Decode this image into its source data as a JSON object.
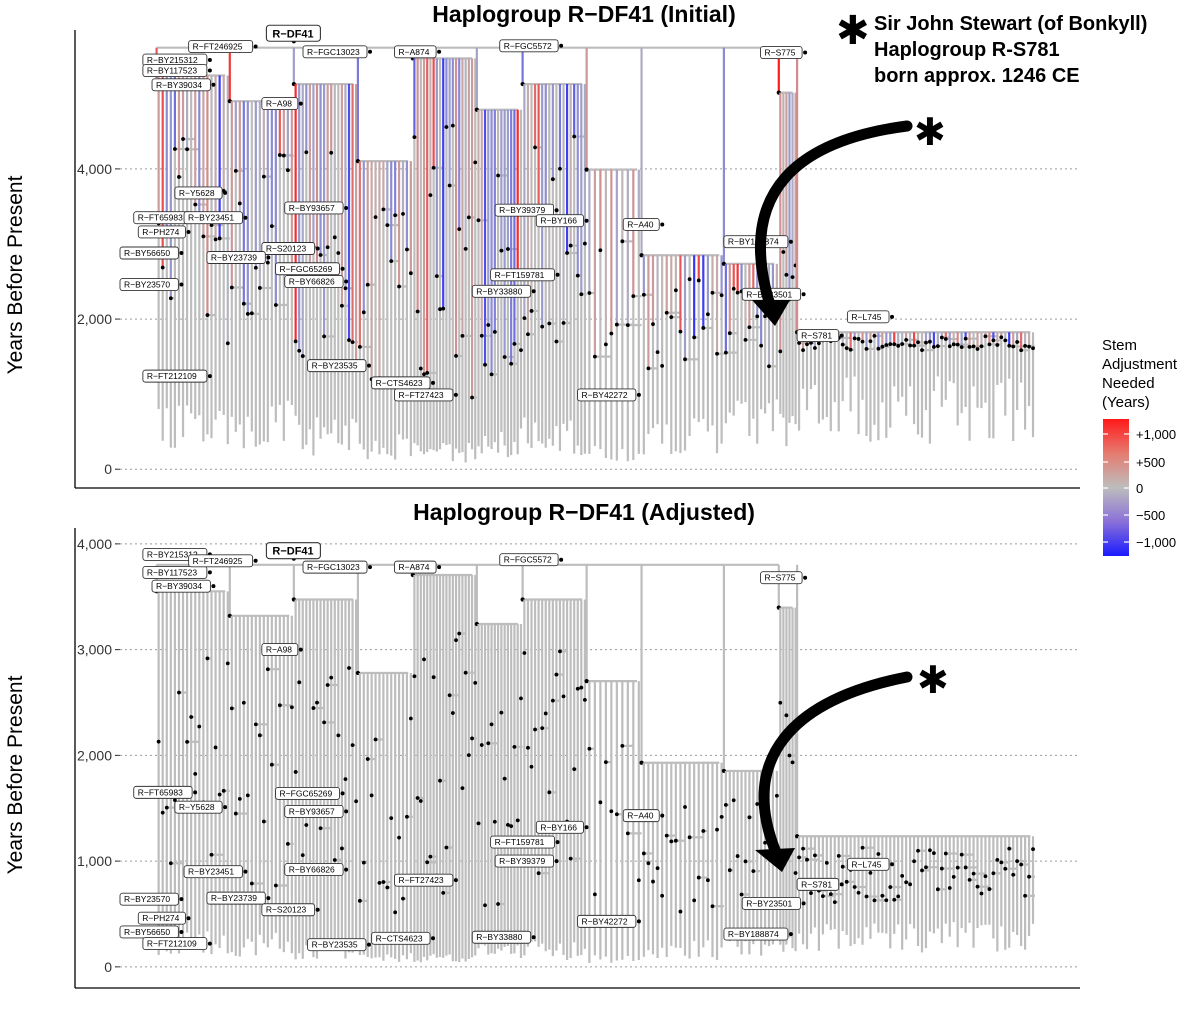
{
  "annotation": {
    "star": "✱",
    "lines": [
      "Sir John Stewart (of Bonkyll)",
      "Haplogroup R-S781",
      "born approx. 1246 CE"
    ]
  },
  "legend": {
    "title_lines": [
      "Stem",
      "Adjustment",
      "Needed",
      "(Years)"
    ],
    "tick_labels": [
      "+1,000",
      "+500",
      "0",
      "−500",
      "−1,000"
    ],
    "colors": {
      "high": "#ff1a1a",
      "mid": "#bdbdbd",
      "low": "#1a1aff"
    }
  },
  "chart_data": [
    {
      "type": "tree",
      "title": "Haplogroup R−DF41 (Initial)",
      "ylabel": "Years Before Present",
      "ylim": [
        -250,
        5850
      ],
      "yticks": [
        0,
        2000,
        4000
      ],
      "ytick_labels": [
        "0",
        "2,000",
        "4,000"
      ],
      "grid": "horizontal dotted",
      "colored_by_adjustment": true,
      "root_label": "R−DF41",
      "root_age": 5700,
      "labels": [
        {
          "text": "R−BY215312",
          "x": 0.025,
          "y": 5450
        },
        {
          "text": "R−BY117523",
          "x": 0.025,
          "y": 5310
        },
        {
          "text": "R−BY39034",
          "x": 0.035,
          "y": 5120
        },
        {
          "text": "R−FT246925",
          "x": 0.075,
          "y": 5630
        },
        {
          "text": "R−FGC13023",
          "x": 0.2,
          "y": 5560
        },
        {
          "text": "R−A874",
          "x": 0.3,
          "y": 5560
        },
        {
          "text": "R−FGC5572",
          "x": 0.415,
          "y": 5640
        },
        {
          "text": "R−S775",
          "x": 0.7,
          "y": 5550
        },
        {
          "text": "R−A98",
          "x": 0.155,
          "y": 4870
        },
        {
          "text": "R−Y5628",
          "x": 0.06,
          "y": 3680
        },
        {
          "text": "R−FT65983",
          "x": 0.015,
          "y": 3350
        },
        {
          "text": "R−BY23451",
          "x": 0.07,
          "y": 3350
        },
        {
          "text": "R−BY93657",
          "x": 0.18,
          "y": 3480
        },
        {
          "text": "R−BY39379",
          "x": 0.41,
          "y": 3450
        },
        {
          "text": "R−BY166",
          "x": 0.455,
          "y": 3310
        },
        {
          "text": "R−A40",
          "x": 0.55,
          "y": 3260
        },
        {
          "text": "R−PH274",
          "x": 0.02,
          "y": 3160
        },
        {
          "text": "R−BY188874",
          "x": 0.66,
          "y": 3030
        },
        {
          "text": "R−S20123",
          "x": 0.155,
          "y": 2940
        },
        {
          "text": "R−BY56650",
          "x": 0.0,
          "y": 2880
        },
        {
          "text": "R−BY23739",
          "x": 0.095,
          "y": 2820
        },
        {
          "text": "R−FGC65269",
          "x": 0.17,
          "y": 2670
        },
        {
          "text": "R−FT159781",
          "x": 0.405,
          "y": 2590
        },
        {
          "text": "R−BY66826",
          "x": 0.18,
          "y": 2500
        },
        {
          "text": "R−BY23570",
          "x": 0.0,
          "y": 2460
        },
        {
          "text": "R−BY33880",
          "x": 0.385,
          "y": 2370
        },
        {
          "text": "R−BY23501",
          "x": 0.68,
          "y": 2330
        },
        {
          "text": "R−L745",
          "x": 0.795,
          "y": 2030
        },
        {
          "text": "R−S781",
          "x": 0.74,
          "y": 1780
        },
        {
          "text": "R−BY23535",
          "x": 0.205,
          "y": 1380
        },
        {
          "text": "R−FT212109",
          "x": 0.025,
          "y": 1240
        },
        {
          "text": "R−CTS4623",
          "x": 0.275,
          "y": 1150
        },
        {
          "text": "R−FT27423",
          "x": 0.3,
          "y": 990
        },
        {
          "text": "R−BY42272",
          "x": 0.5,
          "y": 990
        }
      ],
      "annotated_node": "R−S781"
    },
    {
      "type": "tree",
      "title": "Haplogroup R−DF41 (Adjusted)",
      "ylabel": "Years Before Present",
      "ylim": [
        -200,
        4150
      ],
      "yticks": [
        0,
        1000,
        2000,
        3000,
        4000
      ],
      "ytick_labels": [
        "0",
        "1,000",
        "2,000",
        "3,000",
        "4,000"
      ],
      "grid": "horizontal dotted",
      "colored_by_adjustment": false,
      "root_label": "R−DF41",
      "root_age": 3860,
      "labels": [
        {
          "text": "R−BY215312",
          "x": 0.025,
          "y": 3900
        },
        {
          "text": "R−BY117523",
          "x": 0.025,
          "y": 3730
        },
        {
          "text": "R−BY39034",
          "x": 0.035,
          "y": 3600
        },
        {
          "text": "R−FT246925",
          "x": 0.075,
          "y": 3840
        },
        {
          "text": "R−FGC13023",
          "x": 0.2,
          "y": 3780
        },
        {
          "text": "R−A874",
          "x": 0.3,
          "y": 3780
        },
        {
          "text": "R−FGC5572",
          "x": 0.415,
          "y": 3850
        },
        {
          "text": "R−S775",
          "x": 0.7,
          "y": 3680
        },
        {
          "text": "R−A98",
          "x": 0.155,
          "y": 3000
        },
        {
          "text": "R−FT65983",
          "x": 0.015,
          "y": 1650
        },
        {
          "text": "R−FGC65269",
          "x": 0.17,
          "y": 1640
        },
        {
          "text": "R−Y5628",
          "x": 0.06,
          "y": 1510
        },
        {
          "text": "R−BY93657",
          "x": 0.18,
          "y": 1470
        },
        {
          "text": "R−A40",
          "x": 0.55,
          "y": 1430
        },
        {
          "text": "R−BY166",
          "x": 0.455,
          "y": 1320
        },
        {
          "text": "R−FT159781",
          "x": 0.405,
          "y": 1180
        },
        {
          "text": "R−BY39379",
          "x": 0.41,
          "y": 1000
        },
        {
          "text": "R−L745",
          "x": 0.795,
          "y": 970
        },
        {
          "text": "R−BY66826",
          "x": 0.18,
          "y": 920
        },
        {
          "text": "R−BY23451",
          "x": 0.07,
          "y": 900
        },
        {
          "text": "R−FT27423",
          "x": 0.3,
          "y": 820
        },
        {
          "text": "R−S781",
          "x": 0.74,
          "y": 780
        },
        {
          "text": "R−BY23739",
          "x": 0.095,
          "y": 650
        },
        {
          "text": "R−BY23570",
          "x": 0.0,
          "y": 640
        },
        {
          "text": "R−BY23501",
          "x": 0.68,
          "y": 600
        },
        {
          "text": "R−S20123",
          "x": 0.155,
          "y": 540
        },
        {
          "text": "R−PH274",
          "x": 0.02,
          "y": 460
        },
        {
          "text": "R−BY42272",
          "x": 0.5,
          "y": 430
        },
        {
          "text": "R−BY56650",
          "x": 0.0,
          "y": 330
        },
        {
          "text": "R−BY188874",
          "x": 0.66,
          "y": 310
        },
        {
          "text": "R−BY33880",
          "x": 0.385,
          "y": 280
        },
        {
          "text": "R−CTS4623",
          "x": 0.275,
          "y": 270
        },
        {
          "text": "R−FT212109",
          "x": 0.025,
          "y": 220
        },
        {
          "text": "R−BY23535",
          "x": 0.205,
          "y": 210
        }
      ],
      "annotated_node": "R−S781"
    }
  ]
}
